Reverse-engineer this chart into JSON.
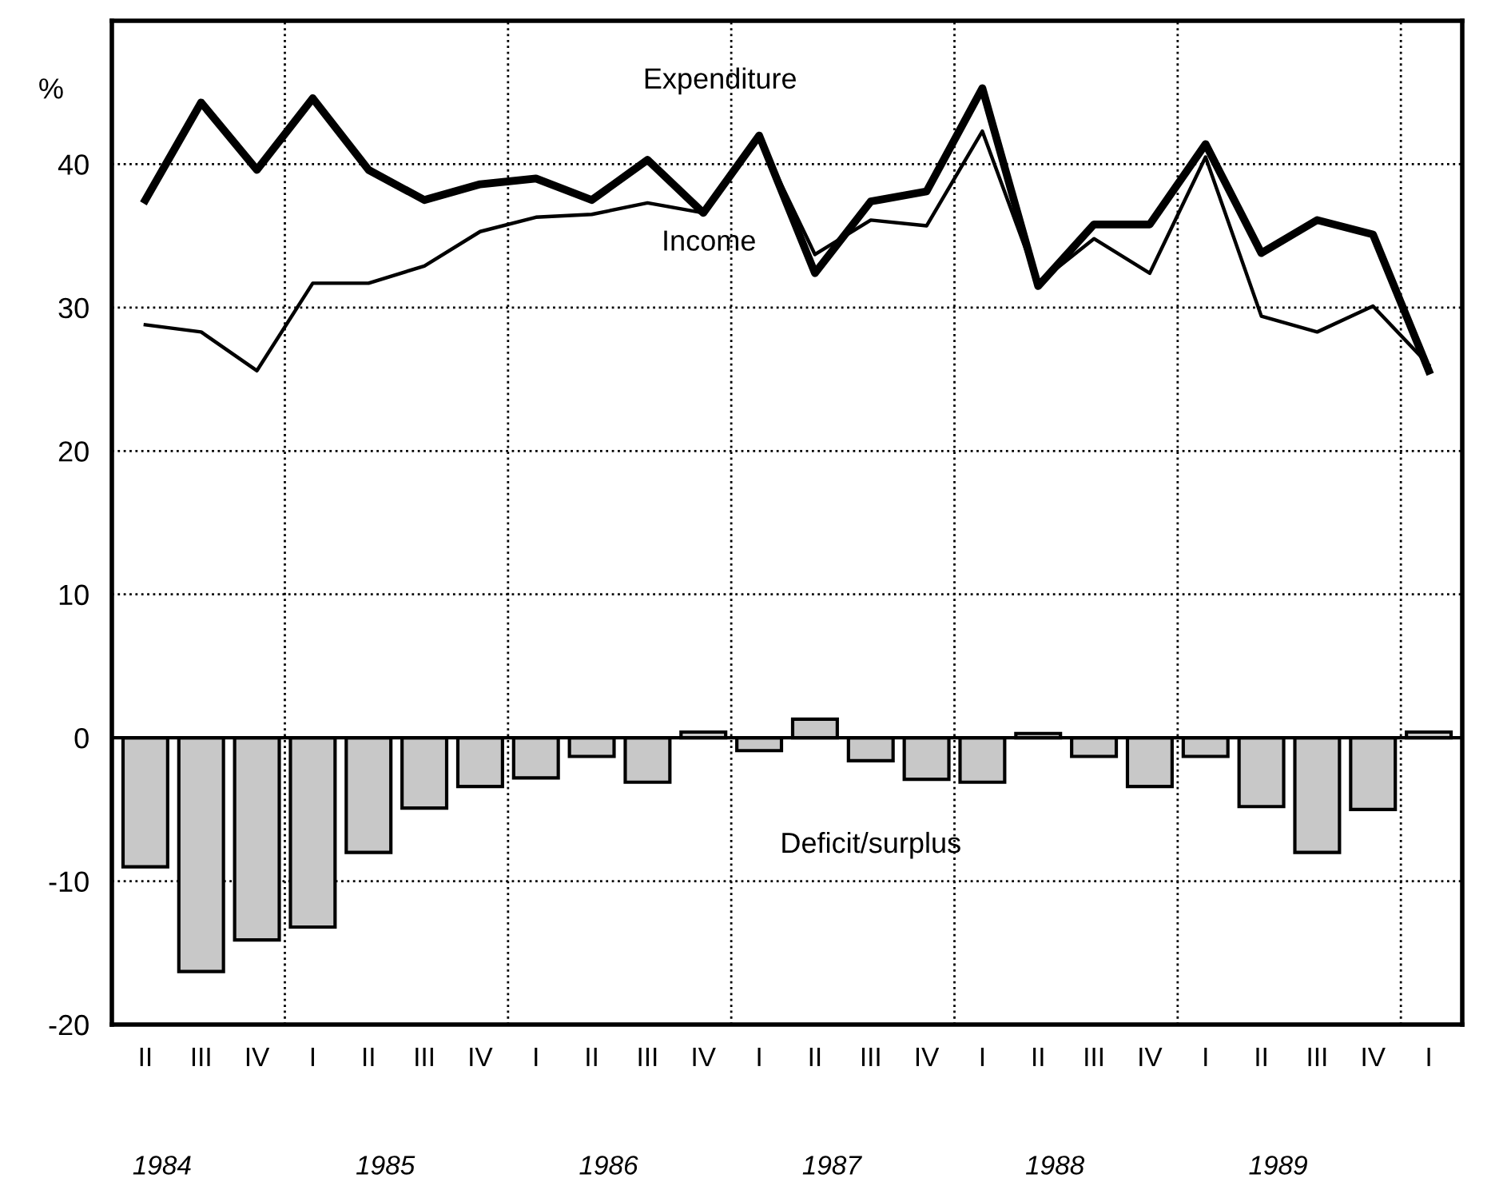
{
  "chart_data": {
    "type": "bar",
    "categories": [
      "II",
      "III",
      "IV",
      "I",
      "II",
      "III",
      "IV",
      "I",
      "II",
      "III",
      "IV",
      "I",
      "II",
      "III",
      "IV",
      "I",
      "II",
      "III",
      "IV",
      "I",
      "II",
      "III",
      "IV",
      "I"
    ],
    "series": [
      {
        "name": "Deficit/surplus",
        "color": "#c8c8c8",
        "values": [
          -9.0,
          -16.3,
          -14.1,
          -13.2,
          -8.0,
          -4.9,
          -3.4,
          -2.8,
          -1.3,
          -3.1,
          0.4,
          -0.9,
          1.3,
          -1.6,
          -2.9,
          -3.1,
          0.3,
          -1.3,
          -3.4,
          -1.3,
          -4.8,
          -8.0,
          -5.0,
          0.4
        ]
      },
      {
        "name": "Expenditure",
        "type": "line",
        "color": "#000000",
        "values": [
          37.5,
          44.3,
          39.6,
          44.6,
          39.6,
          37.5,
          38.6,
          39.0,
          37.5,
          40.3,
          36.6,
          42.0,
          32.4,
          37.4,
          38.1,
          45.3,
          31.5,
          35.8,
          35.8,
          41.4,
          33.8,
          36.1,
          35.1,
          25.6
        ]
      },
      {
        "name": "Income",
        "type": "line",
        "color": "#000000",
        "values": [
          28.8,
          28.3,
          25.6,
          31.7,
          31.7,
          32.9,
          35.3,
          36.3,
          36.5,
          37.3,
          36.6,
          41.8,
          33.7,
          36.1,
          35.7,
          42.3,
          31.7,
          34.8,
          32.4,
          40.5,
          29.4,
          28.3,
          30.1,
          26.0
        ]
      }
    ],
    "ylabel": "%",
    "ylim": [
      -20,
      50
    ],
    "yticks": [
      -20,
      -10,
      0,
      10,
      20,
      30,
      40
    ],
    "annotations": [
      "1984",
      "1985",
      "1986",
      "1987",
      "1988",
      "1989"
    ],
    "grid": true,
    "legend": false,
    "marker": "none",
    "line_style": "solid"
  }
}
